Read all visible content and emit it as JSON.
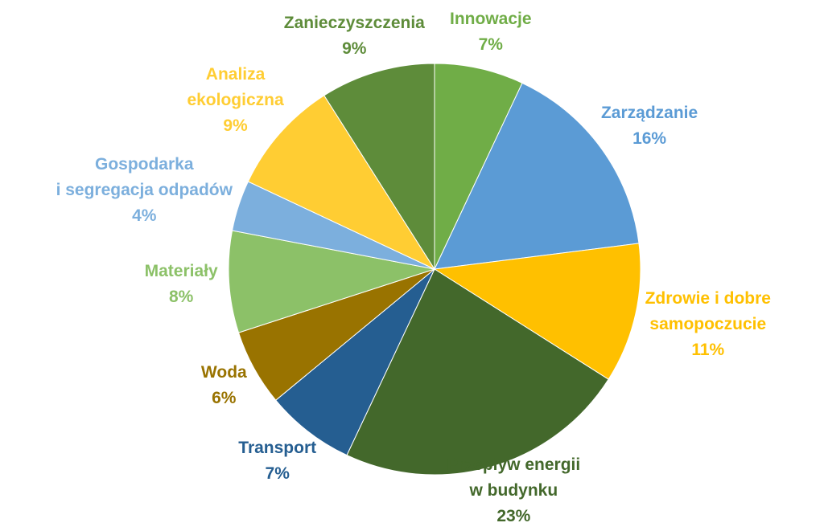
{
  "chart_data": {
    "type": "pie",
    "categories": [
      "Innowacje",
      "Zarządzanie",
      "Zdrowie i dobre\nsamopoczucie",
      "Przepływ energii\nw budynku",
      "Transport",
      "Woda",
      "Materiały",
      "Gospodarka\ni segregacja odpadów",
      "Analiza\nekologiczna",
      "Zanieczyszczenia"
    ],
    "values": [
      7,
      16,
      11,
      23,
      7,
      6,
      8,
      4,
      9,
      9
    ],
    "value_labels": [
      "7%",
      "16%",
      "11%",
      "23%",
      "7%",
      "6%",
      "8%",
      "4%",
      "9%",
      "9%"
    ],
    "colors": [
      "#70ad47",
      "#5b9bd5",
      "#ffc000",
      "#43682b",
      "#255e91",
      "#997300",
      "#8cc168",
      "#7cafdd",
      "#ffcd33",
      "#5e8c3a"
    ]
  }
}
